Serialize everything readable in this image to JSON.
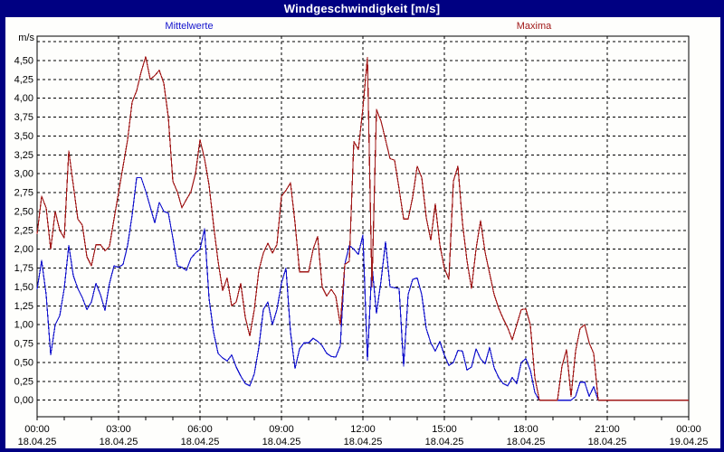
{
  "window": {
    "title": "Windgeschwindigkeit [m/s]"
  },
  "legend": {
    "mean_label": "Mittelwerte",
    "max_label": "Maxima",
    "mean_color": "#1414cd",
    "max_color": "#a01818"
  },
  "y_axis": {
    "unit_label": "m/s",
    "tick_labels": [
      "0,00",
      "0,25",
      "0,50",
      "0,75",
      "1,00",
      "1,25",
      "1,50",
      "1,75",
      "2,00",
      "2,25",
      "2,50",
      "2,75",
      "3,00",
      "3,25",
      "3,50",
      "3,75",
      "4,00",
      "4,25",
      "4,50"
    ],
    "tick_step": 0.25
  },
  "x_axis": {
    "labels": [
      {
        "hour": 0,
        "time": "00:00",
        "date": "18.04.25"
      },
      {
        "hour": 3,
        "time": "03:00",
        "date": "18.04.25"
      },
      {
        "hour": 6,
        "time": "06:00",
        "date": "18.04.25"
      },
      {
        "hour": 9,
        "time": "09:00",
        "date": "18.04.25"
      },
      {
        "hour": 12,
        "time": "12:00",
        "date": "18.04.25"
      },
      {
        "hour": 15,
        "time": "15:00",
        "date": "18.04.25"
      },
      {
        "hour": 18,
        "time": "18:00",
        "date": "18.04.25"
      },
      {
        "hour": 21,
        "time": "21:00",
        "date": "18.04.25"
      },
      {
        "hour": 24,
        "time": "00:00",
        "date": "19.04.25"
      }
    ]
  },
  "chart_data": {
    "type": "line",
    "title": "Windgeschwindigkeit [m/s]",
    "ylabel": "m/s",
    "ylim": [
      0,
      4.82
    ],
    "y_gridline_step": 0.25,
    "y_gridline_max": 4.75,
    "x_unit": "minutes since 00:00 18.04.25",
    "x_step_minutes": 10,
    "x_range_minutes": [
      0,
      1440
    ],
    "x_gridline_step_hours": 3,
    "x_tick_step_hours": 1,
    "grid": "dashed",
    "legend_position": "top",
    "series": [
      {
        "name": "Mittelwerte",
        "color": "#1414cd",
        "values": [
          1.47,
          1.85,
          1.4,
          0.6,
          1.0,
          1.12,
          1.48,
          2.05,
          1.65,
          1.48,
          1.36,
          1.2,
          1.3,
          1.55,
          1.4,
          1.19,
          1.55,
          1.78,
          1.76,
          1.8,
          2.05,
          2.45,
          2.95,
          2.95,
          2.77,
          2.56,
          2.35,
          2.62,
          2.5,
          2.48,
          2.15,
          1.78,
          1.76,
          1.72,
          1.88,
          1.95,
          2.0,
          2.27,
          1.35,
          0.9,
          0.62,
          0.56,
          0.52,
          0.6,
          0.44,
          0.32,
          0.22,
          0.19,
          0.35,
          0.7,
          1.2,
          1.3,
          1.0,
          1.2,
          1.55,
          1.75,
          0.9,
          0.42,
          0.68,
          0.76,
          0.76,
          0.82,
          0.78,
          0.72,
          0.62,
          0.58,
          0.57,
          0.72,
          1.8,
          2.05,
          2.0,
          1.93,
          2.19,
          0.53,
          1.79,
          1.15,
          1.58,
          2.1,
          1.5,
          1.49,
          1.48,
          0.45,
          1.4,
          1.6,
          1.62,
          1.4,
          0.95,
          0.76,
          0.65,
          0.78,
          0.6,
          0.46,
          0.5,
          0.66,
          0.65,
          0.4,
          0.44,
          0.68,
          0.55,
          0.48,
          0.7,
          0.43,
          0.3,
          0.22,
          0.19,
          0.3,
          0.22,
          0.5,
          0.55,
          0.4,
          0.1,
          0,
          0,
          0,
          0,
          0,
          0,
          0,
          0,
          0.05,
          0.24,
          0.24,
          0.05,
          0.18,
          0,
          0,
          0,
          0,
          0,
          0,
          0,
          0,
          0,
          0,
          0,
          0,
          0,
          0,
          0,
          0,
          0,
          0,
          0,
          0,
          0
        ]
      },
      {
        "name": "Maxima",
        "color": "#a01818",
        "values": [
          2.2,
          2.7,
          2.55,
          2.0,
          2.5,
          2.25,
          2.15,
          3.3,
          2.85,
          2.4,
          2.32,
          1.9,
          1.78,
          2.06,
          2.06,
          1.98,
          2.04,
          2.4,
          2.75,
          3.1,
          3.45,
          3.95,
          4.1,
          4.35,
          4.55,
          4.25,
          4.3,
          4.37,
          4.2,
          3.75,
          2.9,
          2.76,
          2.55,
          2.66,
          2.76,
          3.0,
          3.45,
          3.2,
          2.85,
          2.32,
          1.84,
          1.45,
          1.62,
          1.25,
          1.3,
          1.55,
          1.1,
          0.85,
          1.2,
          1.72,
          1.95,
          2.08,
          1.95,
          2.06,
          2.7,
          2.78,
          2.88,
          2.35,
          1.7,
          1.7,
          1.7,
          2.0,
          2.17,
          1.5,
          1.38,
          1.47,
          1.38,
          1.0,
          1.8,
          1.84,
          3.43,
          3.32,
          3.87,
          4.54,
          1.5,
          3.85,
          3.7,
          3.45,
          3.2,
          3.18,
          2.8,
          2.4,
          2.4,
          2.69,
          3.1,
          2.95,
          2.42,
          2.12,
          2.6,
          2.06,
          1.75,
          1.6,
          2.9,
          3.1,
          2.35,
          1.85,
          1.48,
          2.0,
          2.38,
          1.96,
          1.68,
          1.4,
          1.22,
          1.08,
          0.96,
          0.8,
          1.0,
          1.2,
          1.21,
          1.0,
          0.3,
          0,
          0,
          0,
          0,
          0,
          0.45,
          0.67,
          0.05,
          0.65,
          0.95,
          1.0,
          0.76,
          0.62,
          0,
          0,
          0,
          0,
          0,
          0,
          0,
          0,
          0,
          0,
          0,
          0,
          0,
          0,
          0,
          0,
          0,
          0,
          0,
          0,
          0
        ]
      }
    ]
  }
}
